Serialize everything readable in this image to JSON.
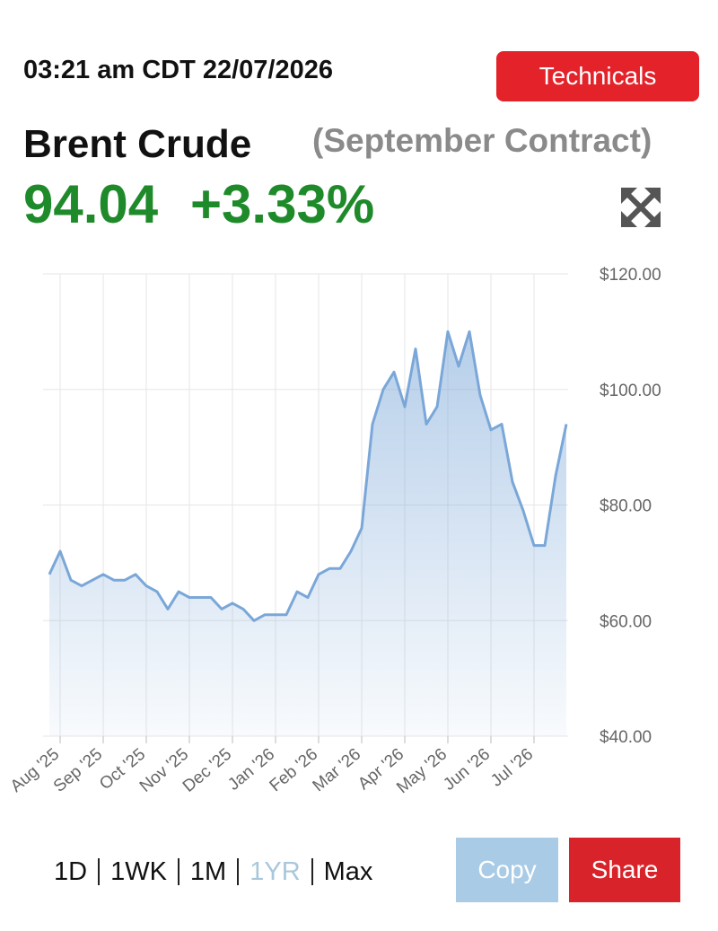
{
  "header": {
    "timestamp": "03:21 am CDT 22/07/2026",
    "technicals_button": "Technicals",
    "name": "Brent Crude",
    "contract": "(September Contract)",
    "price": "94.04",
    "change": "+3.33%"
  },
  "chart_data": {
    "type": "area",
    "color": "#7aa7d8",
    "categories": [
      null,
      "Aug '25",
      null,
      null,
      null,
      "Sep '25",
      null,
      null,
      null,
      "Oct '25",
      null,
      null,
      null,
      "Nov '25",
      null,
      null,
      null,
      "Dec '25",
      null,
      null,
      null,
      "Jan '26",
      null,
      null,
      null,
      "Feb '26",
      null,
      null,
      null,
      "Mar '26",
      null,
      null,
      null,
      "Apr '26",
      null,
      null,
      null,
      "May '26",
      null,
      null,
      null,
      "Jun '26",
      null,
      null,
      null,
      "Jul '26",
      null,
      null,
      null
    ],
    "values": [
      68,
      72,
      67,
      66,
      67,
      68,
      67,
      67,
      68,
      66,
      65,
      62,
      65,
      64,
      64,
      64,
      62,
      63,
      62,
      60,
      61,
      61,
      61,
      65,
      64,
      68,
      69,
      69,
      72,
      76,
      94,
      100,
      103,
      97,
      107,
      94,
      97,
      110,
      104,
      110,
      99,
      93,
      94,
      84,
      79,
      73,
      73,
      85,
      94
    ],
    "ylim": [
      40,
      120
    ],
    "yticks": [
      {
        "value": 40,
        "label": "$40.00"
      },
      {
        "value": 60,
        "label": "$60.00"
      },
      {
        "value": 80,
        "label": "$80.00"
      },
      {
        "value": 100,
        "label": "$100.00"
      },
      {
        "value": 120,
        "label": "$120.00"
      }
    ],
    "grid": true
  },
  "footer": {
    "ranges": [
      "1D",
      "1WK",
      "1M",
      "1YR",
      "Max"
    ],
    "active": 3,
    "copy_button": "Copy",
    "share_button": "Share"
  }
}
